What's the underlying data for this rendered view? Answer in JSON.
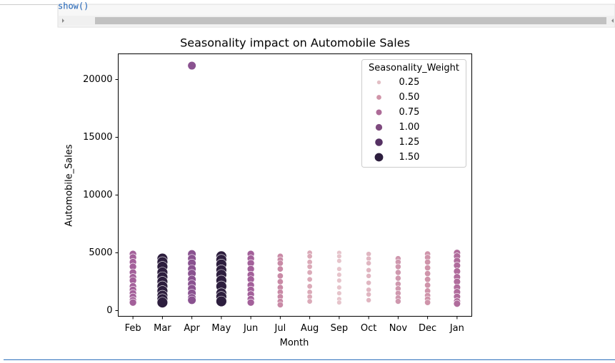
{
  "code_line": "show()",
  "chart_data": {
    "type": "scatter",
    "title": "Seasonality impact on Automobile Sales",
    "x_label": "Month",
    "y_label": "Automobile_Sales",
    "categories": [
      "Feb",
      "Mar",
      "Apr",
      "May",
      "Jun",
      "Jul",
      "Aug",
      "Sep",
      "Oct",
      "Nov",
      "Dec",
      "Jan"
    ],
    "weights": [
      0.75,
      1.5,
      1.0,
      1.5,
      0.75,
      0.5,
      0.35,
      0.25,
      0.3,
      0.45,
      0.5,
      0.7
    ],
    "colors": [
      "#a3609a",
      "#2d1e3e",
      "#8a5290",
      "#2d1e3e",
      "#a3609a",
      "#c98aa6",
      "#dbaab8",
      "#e6c4cb",
      "#e0b6c1",
      "#cf98ae",
      "#cf94aa",
      "#b06c9c"
    ],
    "values": [
      [
        4900,
        4600,
        4200,
        3800,
        3300,
        2900,
        2600,
        2100,
        1800,
        1500,
        1200,
        900,
        700
      ],
      [
        4500,
        4200,
        3800,
        3300,
        2900,
        2500,
        2100,
        1700,
        1300,
        1000,
        700
      ],
      [
        21200,
        4900,
        4500,
        4100,
        3600,
        3200,
        2700,
        2300,
        1900,
        1500,
        1100,
        900
      ],
      [
        4700,
        4400,
        4000,
        3500,
        3100,
        2600,
        2100,
        1500,
        1200,
        800
      ],
      [
        4900,
        4500,
        4100,
        3600,
        3100,
        2700,
        2200,
        1800,
        1400,
        1000,
        700
      ],
      [
        4700,
        4400,
        4100,
        3600,
        3000,
        2500,
        2000,
        1600,
        1200,
        800,
        500
      ],
      [
        5000,
        4700,
        4200,
        3800,
        3300,
        2700,
        2100,
        1600,
        1200,
        800
      ],
      [
        5000,
        4700,
        4300,
        3600,
        3100,
        2600,
        2000,
        1500,
        1000,
        700
      ],
      [
        4900,
        4500,
        4100,
        3500,
        3000,
        2400,
        1800,
        1400,
        900
      ],
      [
        4500,
        4200,
        3800,
        3300,
        2800,
        2300,
        1900,
        1500,
        1100,
        800
      ],
      [
        4900,
        4600,
        4200,
        3700,
        3200,
        2700,
        2200,
        1700,
        1300,
        1000,
        700
      ],
      [
        5000,
        4700,
        4300,
        3900,
        3400,
        2900,
        2500,
        2000,
        1600,
        1200,
        800,
        600
      ]
    ],
    "ylim": [
      -494,
      22222
    ],
    "yticks": [
      0,
      5000,
      10000,
      15000,
      20000
    ],
    "legend": {
      "title": "Seasonality_Weight",
      "position": "upper right",
      "levels": [
        0.25,
        {
          "value": 0.5,
          "label": "0.50"
        },
        0.75,
        {
          "value": 1,
          "label": "1.00"
        },
        1.25,
        {
          "value": 1.5,
          "label": "1.50"
        }
      ],
      "colors": [
        "#e3bfc5",
        "#d094a8",
        "#ad6b97",
        "#7e4a7e",
        "#553163",
        "#2d1e3e"
      ]
    }
  }
}
